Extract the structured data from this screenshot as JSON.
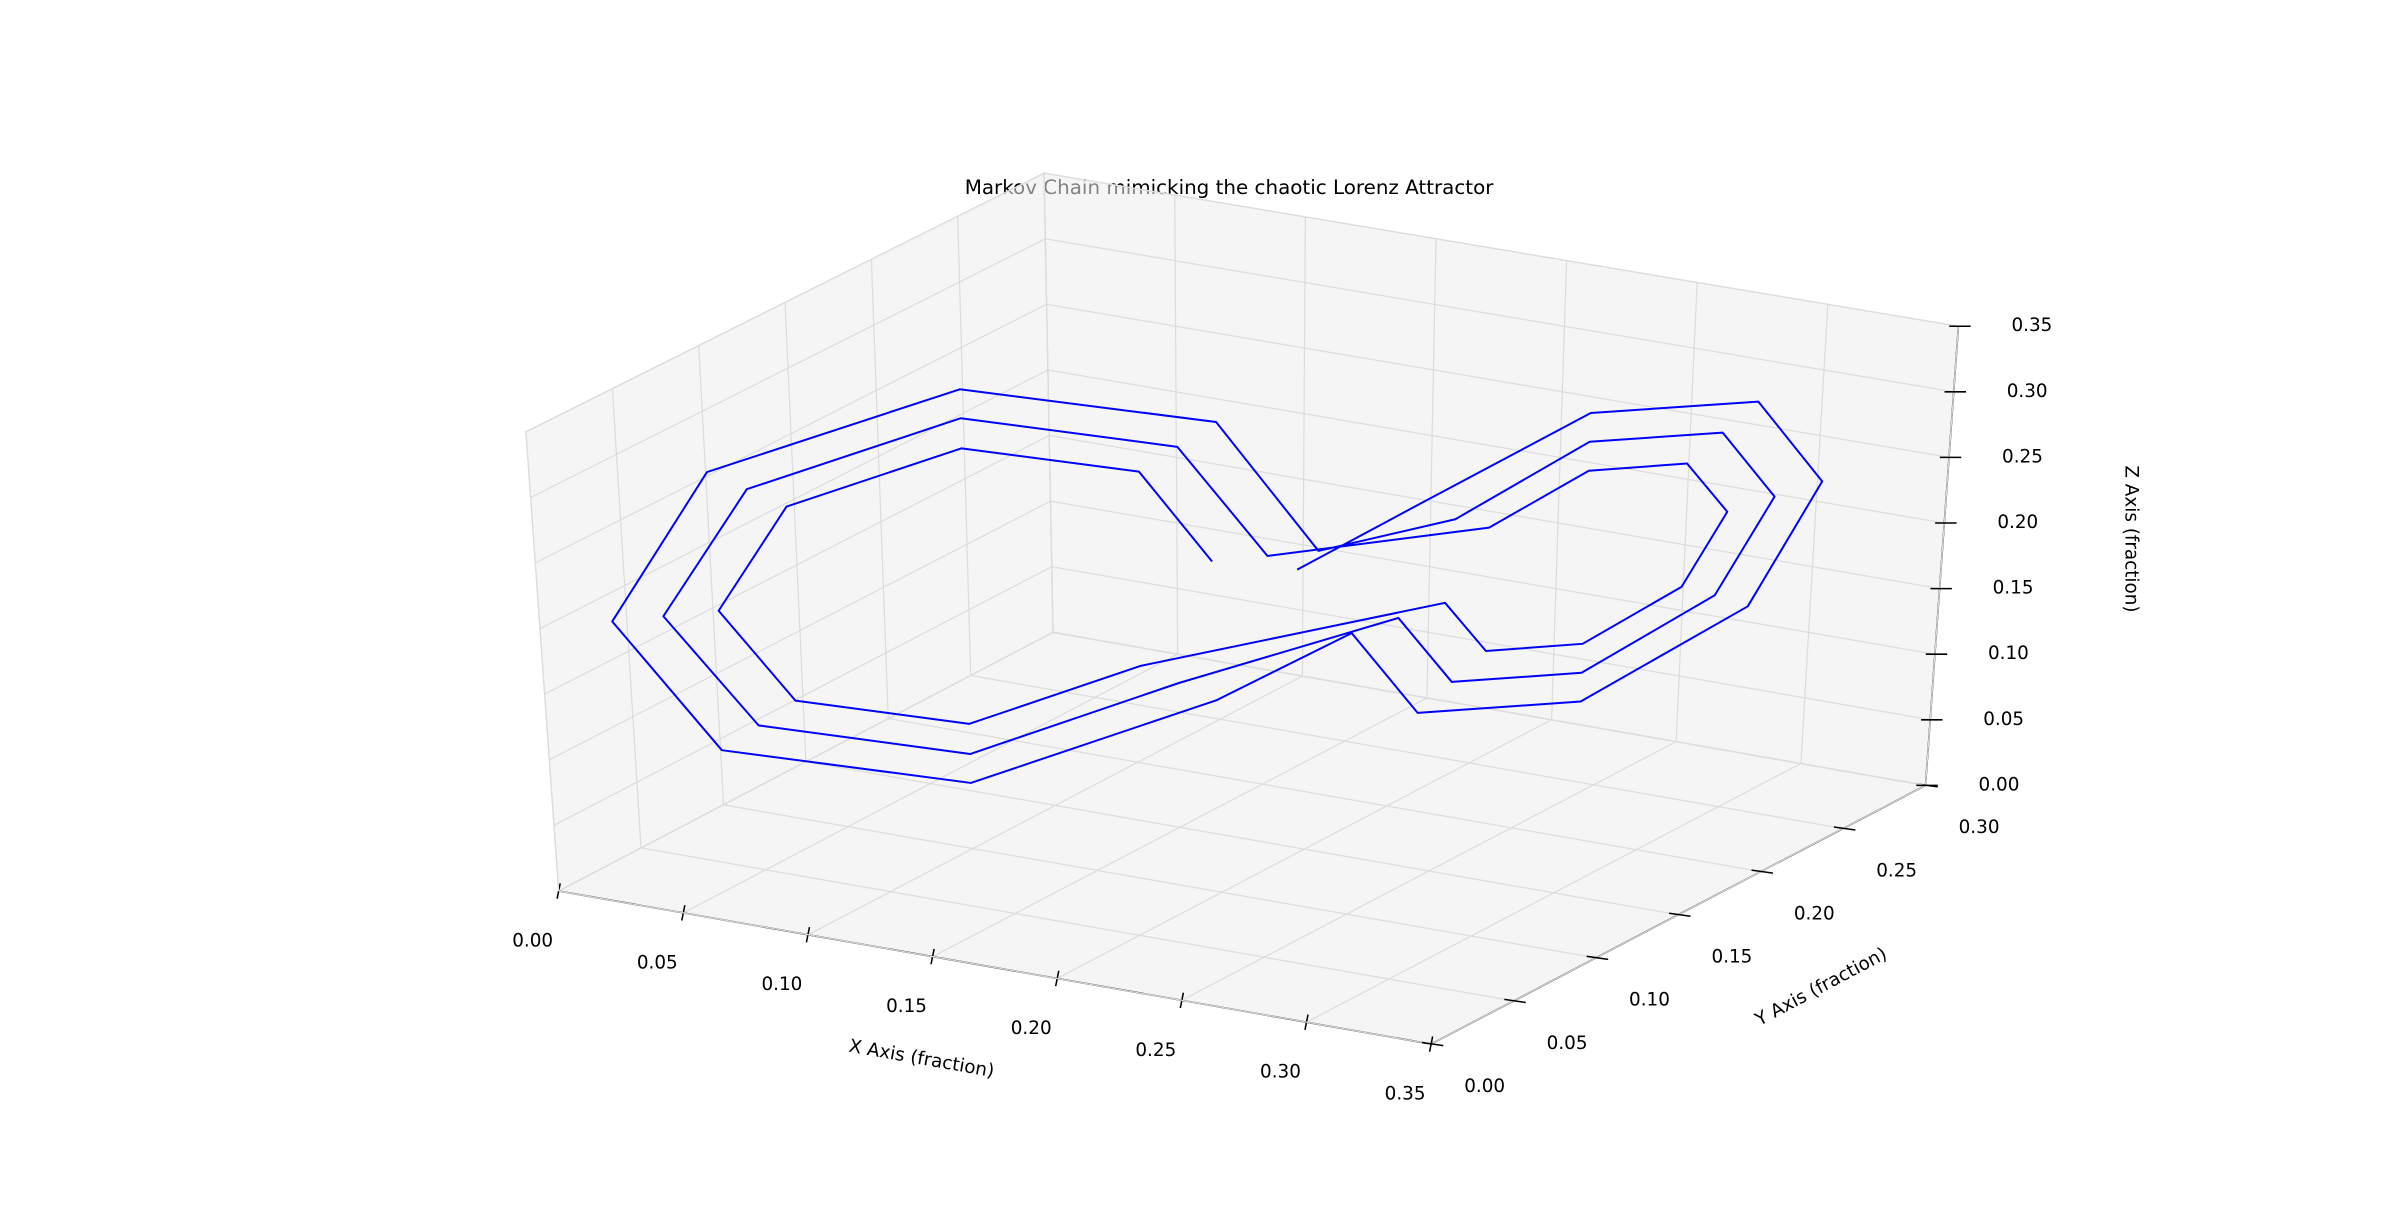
{
  "chart_data": {
    "type": "line3d",
    "title": "Markov Chain mimicking the chaotic Lorenz Attractor",
    "xlabel": "X Axis (fraction)",
    "ylabel": "Y Axis (fraction)",
    "zlabel": "Z Axis (fraction)",
    "xlim": [
      0,
      0.35
    ],
    "ylim": [
      0,
      0.3
    ],
    "zlim": [
      0,
      0.35
    ],
    "xticks": [
      {
        "value": 0,
        "label": "0.00"
      },
      {
        "value": 0.05,
        "label": "0.05"
      },
      {
        "value": 0.1,
        "label": "0.10"
      },
      {
        "value": 0.15,
        "label": "0.15"
      },
      {
        "value": 0.2,
        "label": "0.20"
      },
      {
        "value": 0.25,
        "label": "0.25"
      },
      {
        "value": 0.3,
        "label": "0.30"
      },
      {
        "value": 0.35,
        "label": "0.35"
      }
    ],
    "yticks": [
      {
        "value": 0,
        "label": "0.00"
      },
      {
        "value": 0.05,
        "label": "0.05"
      },
      {
        "value": 0.1,
        "label": "0.10"
      },
      {
        "value": 0.15,
        "label": "0.15"
      },
      {
        "value": 0.2,
        "label": "0.20"
      },
      {
        "value": 0.25,
        "label": "0.25"
      },
      {
        "value": 0.3,
        "label": "0.30"
      }
    ],
    "zticks": [
      {
        "value": 0,
        "label": "0.00"
      },
      {
        "value": 0.05,
        "label": "0.05"
      },
      {
        "value": 0.1,
        "label": "0.10"
      },
      {
        "value": 0.15,
        "label": "0.15"
      },
      {
        "value": 0.2,
        "label": "0.20"
      },
      {
        "value": 0.25,
        "label": "0.25"
      },
      {
        "value": 0.3,
        "label": "0.30"
      },
      {
        "value": 0.35,
        "label": "0.35"
      }
    ],
    "grid": true,
    "series": [
      {
        "color": "#0000ff",
        "x": [
          0.158,
          0.141,
          0.1,
          0.059,
          0.042,
          0.059,
          0.1,
          0.141,
          0.217,
          0.227,
          0.25,
          0.273,
          0.283,
          0.273,
          0.25,
          0.227,
          0.171,
          0.15,
          0.1,
          0.05,
          0.029,
          0.05,
          0.1,
          0.15,
          0.206,
          0.219,
          0.25,
          0.281,
          0.294,
          0.281,
          0.25,
          0.219,
          0.183,
          0.159,
          0.1,
          0.041,
          0.017,
          0.041,
          0.1,
          0.159,
          0.195,
          0.211,
          0.25,
          0.289,
          0.305,
          0.289,
          0.25,
          0.211,
          0.18
        ],
        "y": [
          0.158,
          0.141,
          0.1,
          0.059,
          0.042,
          0.059,
          0.1,
          0.141,
          0.207,
          0.217,
          0.24,
          0.263,
          0.273,
          0.263,
          0.24,
          0.217,
          0.171,
          0.15,
          0.1,
          0.05,
          0.029,
          0.05,
          0.1,
          0.15,
          0.196,
          0.209,
          0.24,
          0.271,
          0.284,
          0.271,
          0.24,
          0.209,
          0.183,
          0.159,
          0.1,
          0.041,
          0.017,
          0.041,
          0.1,
          0.159,
          0.185,
          0.201,
          0.24,
          0.279,
          0.295,
          0.279,
          0.24,
          0.201,
          0.175
        ],
        "z": [
          0.2,
          0.274,
          0.305,
          0.274,
          0.2,
          0.126,
          0.095,
          0.126,
          0.156,
          0.116,
          0.114,
          0.15,
          0.204,
          0.244,
          0.246,
          0.21,
          0.2,
          0.29,
          0.328,
          0.29,
          0.2,
          0.11,
          0.072,
          0.11,
          0.148,
          0.095,
          0.092,
          0.141,
          0.212,
          0.265,
          0.268,
          0.219,
          0.2,
          0.306,
          0.35,
          0.306,
          0.2,
          0.094,
          0.05,
          0.094,
          0.14,
          0.074,
          0.07,
          0.13,
          0.22,
          0.286,
          0.29,
          0.234,
          0.19
        ]
      }
    ]
  }
}
